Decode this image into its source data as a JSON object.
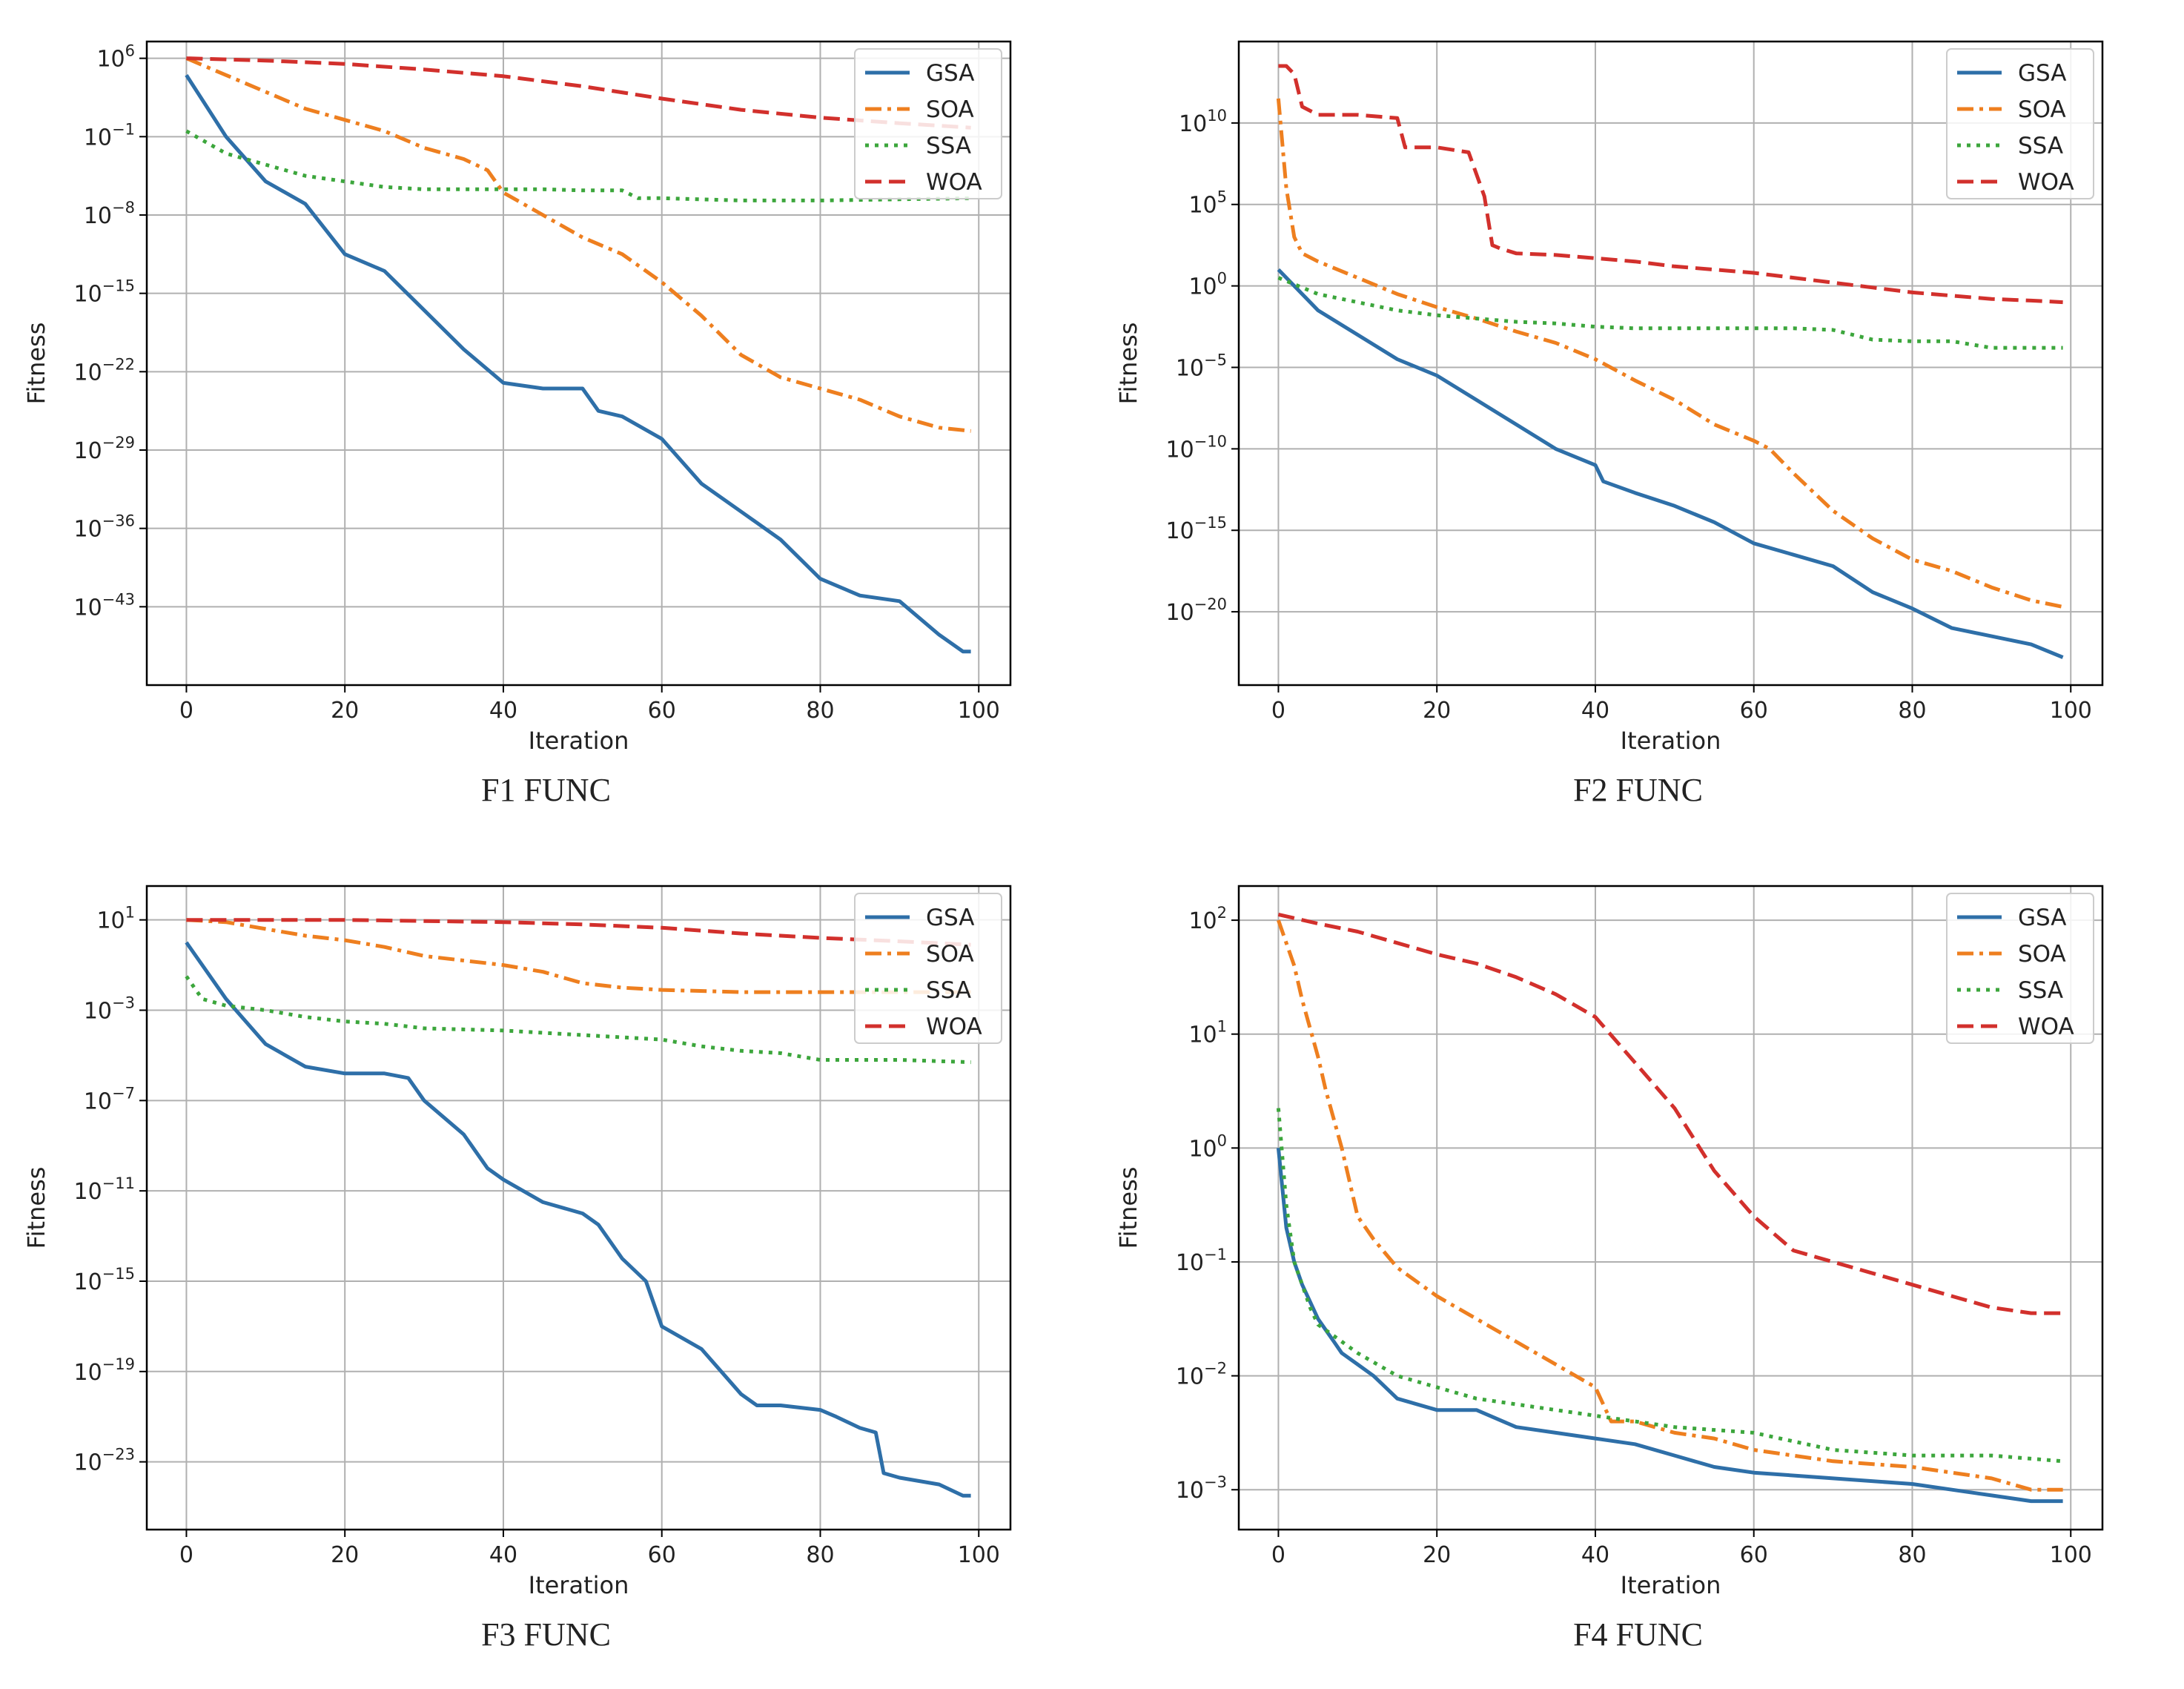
{
  "colors": {
    "GSA": "#2e6fa8",
    "SOA": "#ee7f1f",
    "SSA": "#3ca63c",
    "WOA": "#d2302c"
  },
  "chart_data": [
    {
      "type": "line",
      "yscale": "log",
      "caption": "F1 FUNC",
      "xlabel": "Iteration",
      "ylabel": "Fitness",
      "xlim": [
        -5,
        104
      ],
      "ylim_exp": [
        -50,
        7.5
      ],
      "xticks": [
        0,
        20,
        40,
        60,
        80,
        100
      ],
      "yticks": [
        {
          "exp": 6,
          "label": "6"
        },
        {
          "exp": -1,
          "label": "−1"
        },
        {
          "exp": -8,
          "label": "−8"
        },
        {
          "exp": -15,
          "label": "−15"
        },
        {
          "exp": -22,
          "label": "−22"
        },
        {
          "exp": -29,
          "label": "−29"
        },
        {
          "exp": -36,
          "label": "−36"
        },
        {
          "exp": -43,
          "label": "−43"
        }
      ],
      "legend": [
        "GSA",
        "SOA",
        "SSA",
        "WOA"
      ],
      "series": [
        {
          "name": "GSA",
          "style": "solid",
          "x": [
            0,
            5,
            10,
            15,
            20,
            25,
            30,
            35,
            40,
            45,
            50,
            52,
            55,
            60,
            65,
            70,
            75,
            80,
            85,
            90,
            95,
            98,
            99
          ],
          "log10_y": [
            4.5,
            -1,
            -5,
            -7,
            -11.5,
            -13,
            -16.5,
            -20,
            -23,
            -23.5,
            -23.5,
            -25.5,
            -26,
            -28,
            -32,
            -34.5,
            -37,
            -40.5,
            -42,
            -42.5,
            -45.5,
            -47,
            -47
          ]
        },
        {
          "name": "SOA",
          "style": "dashdot",
          "x": [
            0,
            5,
            10,
            15,
            20,
            25,
            30,
            35,
            38,
            40,
            45,
            50,
            55,
            60,
            65,
            70,
            75,
            80,
            85,
            90,
            95,
            99
          ],
          "log10_y": [
            6,
            4.5,
            3,
            1.5,
            0.5,
            -0.5,
            -2,
            -3,
            -4,
            -6,
            -8,
            -10,
            -11.5,
            -14,
            -17,
            -20.5,
            -22.5,
            -23.5,
            -24.5,
            -26,
            -27,
            -27.3
          ]
        },
        {
          "name": "SSA",
          "style": "dotted",
          "x": [
            0,
            5,
            10,
            15,
            20,
            25,
            30,
            35,
            40,
            45,
            50,
            55,
            57,
            60,
            70,
            80,
            90,
            99
          ],
          "log10_y": [
            -0.5,
            -2.5,
            -3.5,
            -4.5,
            -5,
            -5.5,
            -5.7,
            -5.7,
            -5.7,
            -5.7,
            -5.8,
            -5.8,
            -6.5,
            -6.5,
            -6.7,
            -6.7,
            -6.6,
            -6.5
          ]
        },
        {
          "name": "WOA",
          "style": "dashed",
          "x": [
            0,
            10,
            20,
            30,
            40,
            50,
            60,
            70,
            80,
            90,
            99
          ],
          "log10_y": [
            6,
            5.8,
            5.5,
            5,
            4.4,
            3.5,
            2.4,
            1.4,
            0.7,
            0.2,
            -0.2
          ]
        }
      ]
    },
    {
      "type": "line",
      "yscale": "log",
      "caption": "F2 FUNC",
      "xlabel": "Iteration",
      "ylabel": "Fitness",
      "xlim": [
        -5,
        104
      ],
      "ylim_exp": [
        -24.5,
        15
      ],
      "xticks": [
        0,
        20,
        40,
        60,
        80,
        100
      ],
      "yticks": [
        {
          "exp": 10,
          "label": "10"
        },
        {
          "exp": 5,
          "label": "5"
        },
        {
          "exp": 0,
          "label": "0"
        },
        {
          "exp": -5,
          "label": "−5"
        },
        {
          "exp": -10,
          "label": "−10"
        },
        {
          "exp": -15,
          "label": "−15"
        },
        {
          "exp": -20,
          "label": "−20"
        }
      ],
      "legend": [
        "GSA",
        "SOA",
        "SSA",
        "WOA"
      ],
      "series": [
        {
          "name": "GSA",
          "style": "solid",
          "x": [
            0,
            5,
            10,
            15,
            20,
            25,
            30,
            35,
            40,
            41,
            45,
            50,
            55,
            60,
            65,
            70,
            75,
            80,
            85,
            90,
            95,
            99
          ],
          "log10_y": [
            1,
            -1.5,
            -3,
            -4.5,
            -5.5,
            -7,
            -8.5,
            -10,
            -11,
            -12,
            -12.7,
            -13.5,
            -14.5,
            -15.8,
            -16.5,
            -17.2,
            -18.8,
            -19.8,
            -21,
            -21.5,
            -22,
            -22.8
          ]
        },
        {
          "name": "SOA",
          "style": "dashdot",
          "x": [
            0,
            1,
            2,
            3,
            5,
            10,
            15,
            20,
            25,
            30,
            35,
            40,
            45,
            50,
            55,
            60,
            62,
            65,
            70,
            75,
            80,
            85,
            90,
            95,
            99
          ],
          "log10_y": [
            11.5,
            6,
            3,
            2,
            1.5,
            0.5,
            -0.5,
            -1.3,
            -2,
            -2.8,
            -3.5,
            -4.5,
            -5.8,
            -7,
            -8.5,
            -9.5,
            -10,
            -11.5,
            -13.8,
            -15.5,
            -16.8,
            -17.5,
            -18.5,
            -19.3,
            -19.7
          ]
        },
        {
          "name": "SSA",
          "style": "dotted",
          "x": [
            0,
            5,
            10,
            15,
            20,
            25,
            30,
            35,
            40,
            45,
            50,
            55,
            60,
            65,
            70,
            75,
            80,
            85,
            90,
            95,
            99
          ],
          "log10_y": [
            0.5,
            -0.5,
            -1,
            -1.5,
            -1.8,
            -2,
            -2.2,
            -2.3,
            -2.5,
            -2.6,
            -2.6,
            -2.6,
            -2.6,
            -2.6,
            -2.7,
            -3.3,
            -3.4,
            -3.4,
            -3.8,
            -3.8,
            -3.8
          ]
        },
        {
          "name": "WOA",
          "style": "dashed",
          "x": [
            0,
            1,
            2,
            3,
            5,
            10,
            15,
            16,
            20,
            24,
            26,
            27,
            28,
            30,
            35,
            40,
            45,
            50,
            55,
            60,
            65,
            70,
            75,
            80,
            85,
            90,
            95,
            99
          ],
          "log10_y": [
            13.5,
            13.5,
            13,
            11,
            10.5,
            10.5,
            10.3,
            8.5,
            8.5,
            8.2,
            5.5,
            2.5,
            2.3,
            2,
            1.9,
            1.7,
            1.5,
            1.2,
            1,
            0.8,
            0.5,
            0.2,
            -0.1,
            -0.4,
            -0.6,
            -0.8,
            -0.9,
            -1
          ]
        }
      ]
    },
    {
      "type": "line",
      "yscale": "log",
      "caption": "F3 FUNC",
      "xlabel": "Iteration",
      "ylabel": "Fitness",
      "xlim": [
        -5,
        104
      ],
      "ylim_exp": [
        -26,
        2.5
      ],
      "xticks": [
        0,
        20,
        40,
        60,
        80,
        100
      ],
      "yticks": [
        {
          "exp": 1,
          "label": "1"
        },
        {
          "exp": -3,
          "label": "−3"
        },
        {
          "exp": -7,
          "label": "−7"
        },
        {
          "exp": -11,
          "label": "−11"
        },
        {
          "exp": -15,
          "label": "−15"
        },
        {
          "exp": -19,
          "label": "−19"
        },
        {
          "exp": -23,
          "label": "−23"
        }
      ],
      "legend": [
        "GSA",
        "SOA",
        "SSA",
        "WOA"
      ],
      "series": [
        {
          "name": "GSA",
          "style": "solid",
          "x": [
            0,
            5,
            10,
            15,
            20,
            25,
            28,
            30,
            35,
            38,
            40,
            45,
            50,
            52,
            55,
            58,
            60,
            65,
            70,
            72,
            75,
            80,
            82,
            85,
            87,
            88,
            90,
            95,
            98,
            99
          ],
          "log10_y": [
            0,
            -2.5,
            -4.5,
            -5.5,
            -5.8,
            -5.8,
            -6,
            -7,
            -8.5,
            -10,
            -10.5,
            -11.5,
            -12,
            -12.5,
            -14,
            -15,
            -17,
            -18,
            -20,
            -20.5,
            -20.5,
            -20.7,
            -21,
            -21.5,
            -21.7,
            -23.5,
            -23.7,
            -24,
            -24.5,
            -24.5
          ]
        },
        {
          "name": "SOA",
          "style": "dashdot",
          "x": [
            0,
            5,
            10,
            15,
            20,
            25,
            30,
            35,
            40,
            45,
            50,
            55,
            60,
            70,
            80,
            90,
            99
          ],
          "log10_y": [
            1,
            0.9,
            0.6,
            0.3,
            0.1,
            -0.2,
            -0.6,
            -0.8,
            -1,
            -1.3,
            -1.8,
            -2,
            -2.1,
            -2.2,
            -2.2,
            -2.2,
            -2.2
          ]
        },
        {
          "name": "SSA",
          "style": "dotted",
          "x": [
            0,
            2,
            5,
            10,
            15,
            20,
            25,
            30,
            40,
            50,
            60,
            65,
            70,
            75,
            80,
            90,
            99
          ],
          "log10_y": [
            -1.5,
            -2.5,
            -2.8,
            -3,
            -3.3,
            -3.5,
            -3.6,
            -3.8,
            -3.9,
            -4.1,
            -4.3,
            -4.6,
            -4.8,
            -4.9,
            -5.2,
            -5.2,
            -5.3
          ]
        },
        {
          "name": "WOA",
          "style": "dashed",
          "x": [
            0,
            10,
            20,
            30,
            40,
            50,
            60,
            70,
            80,
            90,
            99
          ],
          "log10_y": [
            1,
            1,
            1,
            0.95,
            0.9,
            0.8,
            0.65,
            0.4,
            0.2,
            0.05,
            -0.1
          ]
        }
      ]
    },
    {
      "type": "line",
      "yscale": "log",
      "caption": "F4 FUNC",
      "xlabel": "Iteration",
      "ylabel": "Fitness",
      "xlim": [
        -5,
        104
      ],
      "ylim_exp": [
        -3.35,
        2.3
      ],
      "xticks": [
        0,
        20,
        40,
        60,
        80,
        100
      ],
      "yticks": [
        {
          "exp": 2,
          "label": "2"
        },
        {
          "exp": 1,
          "label": "1"
        },
        {
          "exp": 0,
          "label": "0"
        },
        {
          "exp": -1,
          "label": "−1"
        },
        {
          "exp": -2,
          "label": "−2"
        },
        {
          "exp": -3,
          "label": "−3"
        }
      ],
      "legend": [
        "GSA",
        "SOA",
        "SSA",
        "WOA"
      ],
      "series": [
        {
          "name": "GSA",
          "style": "solid",
          "x": [
            0,
            1,
            2,
            3,
            4,
            5,
            6,
            7,
            8,
            10,
            12,
            15,
            20,
            25,
            30,
            35,
            40,
            45,
            50,
            55,
            60,
            70,
            80,
            85,
            90,
            95,
            99
          ],
          "log10_y": [
            0,
            -0.7,
            -1,
            -1.2,
            -1.35,
            -1.5,
            -1.6,
            -1.7,
            -1.8,
            -1.9,
            -2,
            -2.2,
            -2.3,
            -2.3,
            -2.45,
            -2.5,
            -2.55,
            -2.6,
            -2.7,
            -2.8,
            -2.85,
            -2.9,
            -2.95,
            -3,
            -3.05,
            -3.1,
            -3.1
          ]
        },
        {
          "name": "SOA",
          "style": "dashdot",
          "x": [
            0,
            1,
            2,
            3,
            4,
            5,
            6,
            7,
            8,
            10,
            12,
            15,
            18,
            20,
            25,
            30,
            35,
            40,
            42,
            45,
            50,
            55,
            60,
            70,
            80,
            90,
            95,
            99
          ],
          "log10_y": [
            2,
            1.8,
            1.6,
            1.3,
            1.05,
            0.8,
            0.5,
            0.25,
            0,
            -0.6,
            -0.8,
            -1.05,
            -1.2,
            -1.3,
            -1.5,
            -1.7,
            -1.9,
            -2.1,
            -2.4,
            -2.4,
            -2.5,
            -2.55,
            -2.65,
            -2.75,
            -2.8,
            -2.9,
            -3,
            -3
          ]
        },
        {
          "name": "SSA",
          "style": "dotted",
          "x": [
            0,
            1,
            2,
            3,
            4,
            5,
            7,
            10,
            15,
            20,
            25,
            30,
            40,
            50,
            60,
            70,
            80,
            90,
            99
          ],
          "log10_y": [
            0.35,
            -0.5,
            -1,
            -1.2,
            -1.4,
            -1.55,
            -1.65,
            -1.8,
            -2,
            -2.1,
            -2.2,
            -2.25,
            -2.35,
            -2.45,
            -2.5,
            -2.65,
            -2.7,
            -2.7,
            -2.75
          ]
        },
        {
          "name": "WOA",
          "style": "dashed",
          "x": [
            0,
            5,
            10,
            15,
            20,
            25,
            30,
            35,
            40,
            45,
            50,
            55,
            60,
            65,
            70,
            75,
            80,
            85,
            90,
            95,
            99
          ],
          "log10_y": [
            2.05,
            1.97,
            1.9,
            1.8,
            1.7,
            1.62,
            1.5,
            1.35,
            1.15,
            0.75,
            0.35,
            -0.2,
            -0.6,
            -0.9,
            -1,
            -1.1,
            -1.2,
            -1.3,
            -1.4,
            -1.45,
            -1.45
          ]
        }
      ]
    }
  ]
}
